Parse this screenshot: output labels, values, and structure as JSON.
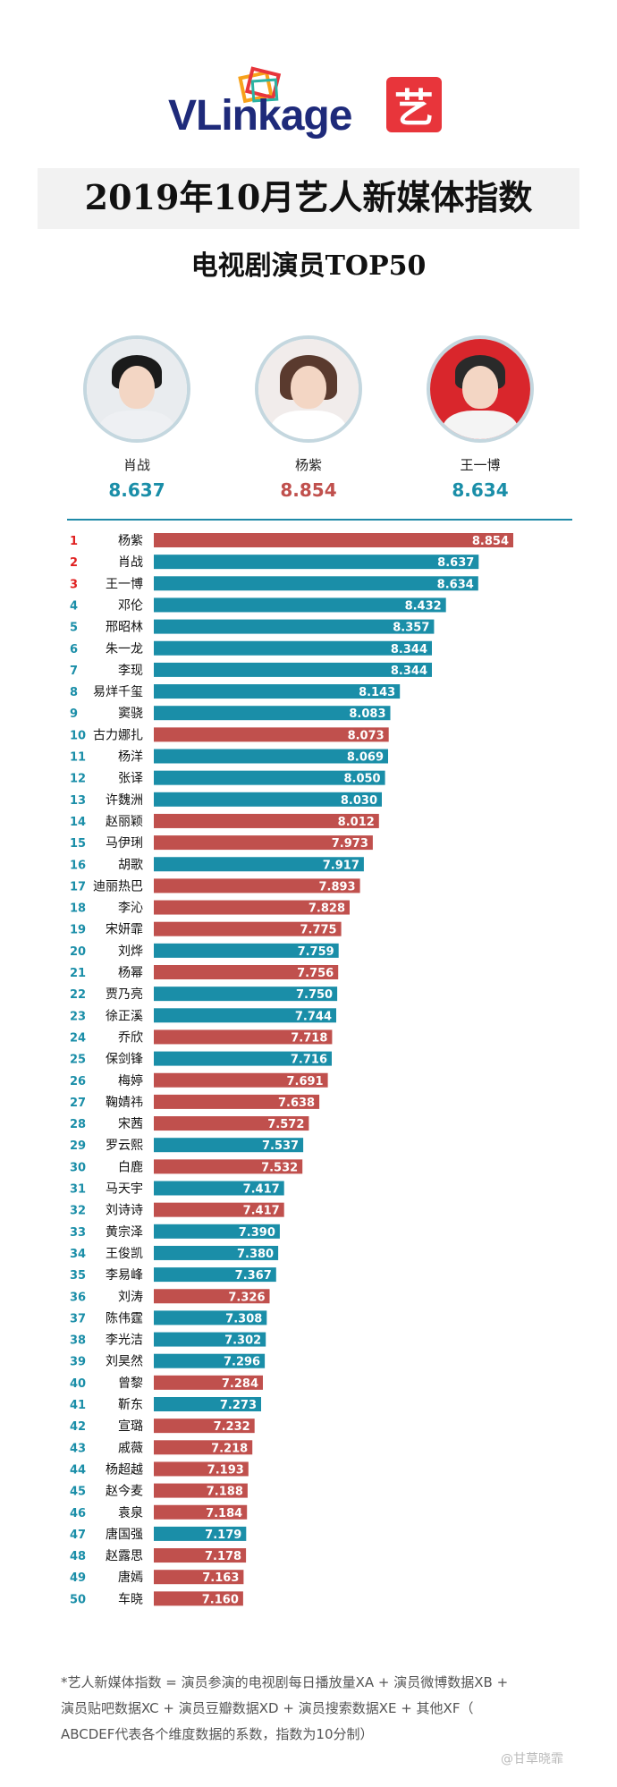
{
  "header": {
    "logo_text": "VLinkage",
    "badge_text": "艺",
    "title": "2019年10月艺人新媒体指数",
    "subtitle": "电视剧演员TOP50"
  },
  "podium": [
    {
      "name": "肖战",
      "score": "8.637",
      "color": "#1a8ea8"
    },
    {
      "name": "杨紫",
      "score": "8.854",
      "color": "#c0504d"
    },
    {
      "name": "王一博",
      "score": "8.634",
      "color": "#1a8ea8"
    }
  ],
  "colors": {
    "red": "#c0504d",
    "blue": "#1a8ea8",
    "rank_red": "#e02020",
    "divider": "#1f8aa8"
  },
  "chart_data": {
    "type": "bar",
    "orientation": "horizontal",
    "title": "电视剧演员TOP50",
    "xlim": [
      6.6,
      8.854
    ],
    "ranks": [
      "1",
      "2",
      "3",
      "4",
      "5",
      "6",
      "7",
      "8",
      "9",
      "10",
      "11",
      "12",
      "13",
      "14",
      "15",
      "16",
      "17",
      "18",
      "19",
      "20",
      "21",
      "22",
      "23",
      "24",
      "25",
      "26",
      "27",
      "28",
      "29",
      "30",
      "31",
      "32",
      "33",
      "34",
      "35",
      "36",
      "37",
      "38",
      "39",
      "40",
      "41",
      "42",
      "43",
      "44",
      "45",
      "46",
      "47",
      "48",
      "49",
      "50"
    ],
    "categories": [
      "杨紫",
      "肖战",
      "王一博",
      "邓伦",
      "邢昭林",
      "朱一龙",
      "李现",
      "易烊千玺",
      "窦骁",
      "古力娜扎",
      "杨洋",
      "张译",
      "许魏洲",
      "赵丽颖",
      "马伊琍",
      "胡歌",
      "迪丽热巴",
      "李沁",
      "宋妍霏",
      "刘烨",
      "杨幂",
      "贾乃亮",
      "徐正溪",
      "乔欣",
      "保剑锋",
      "梅婷",
      "鞠婧祎",
      "宋茜",
      "罗云熙",
      "白鹿",
      "马天宇",
      "刘诗诗",
      "黄宗泽",
      "王俊凯",
      "李易峰",
      "刘涛",
      "陈伟霆",
      "李光洁",
      "刘昊然",
      "曾黎",
      "靳东",
      "宣璐",
      "戚薇",
      "杨超越",
      "赵今麦",
      "袁泉",
      "唐国强",
      "赵露思",
      "唐嫣",
      "车晓"
    ],
    "values": [
      8.854,
      8.637,
      8.634,
      8.432,
      8.357,
      8.344,
      8.344,
      8.143,
      8.083,
      8.073,
      8.069,
      8.05,
      8.03,
      8.012,
      7.973,
      7.917,
      7.893,
      7.828,
      7.775,
      7.759,
      7.756,
      7.75,
      7.744,
      7.718,
      7.716,
      7.691,
      7.638,
      7.572,
      7.537,
      7.532,
      7.417,
      7.417,
      7.39,
      7.38,
      7.367,
      7.326,
      7.308,
      7.302,
      7.296,
      7.284,
      7.273,
      7.232,
      7.218,
      7.193,
      7.188,
      7.184,
      7.179,
      7.178,
      7.163,
      7.16
    ],
    "labels": [
      "8.854",
      "8.637",
      "8.634",
      "8.432",
      "8.357",
      "8.344",
      "8.344",
      "8.143",
      "8.083",
      "8.073",
      "8.069",
      "8.050",
      "8.030",
      "8.012",
      "7.973",
      "7.917",
      "7.893",
      "7.828",
      "7.775",
      "7.759",
      "7.756",
      "7.750",
      "7.744",
      "7.718",
      "7.716",
      "7.691",
      "7.638",
      "7.572",
      "7.537",
      "7.532",
      "7.417",
      "7.417",
      "7.390",
      "7.380",
      "7.367",
      "7.326",
      "7.308",
      "7.302",
      "7.296",
      "7.284",
      "7.273",
      "7.232",
      "7.218",
      "7.193",
      "7.188",
      "7.184",
      "7.179",
      "7.178",
      "7.163",
      "7.160"
    ],
    "gender": [
      "f",
      "m",
      "m",
      "m",
      "m",
      "m",
      "m",
      "m",
      "m",
      "f",
      "m",
      "m",
      "m",
      "f",
      "f",
      "m",
      "f",
      "f",
      "f",
      "m",
      "f",
      "m",
      "m",
      "f",
      "m",
      "f",
      "f",
      "f",
      "m",
      "f",
      "m",
      "f",
      "m",
      "m",
      "m",
      "f",
      "m",
      "m",
      "m",
      "f",
      "m",
      "f",
      "f",
      "f",
      "f",
      "f",
      "m",
      "f",
      "f",
      "f"
    ]
  },
  "footnote": {
    "line1": "*艺人新媒体指数 = 演员参演的电视剧每日播放量XA + 演员微博数据XB +",
    "line2": "演员贴吧数据XC + 演员豆瓣数据XD + 演员搜索数据XE + 其他XF（",
    "line3": "ABCDEF代表各个维度数据的系数，指数为10分制）"
  },
  "watermark": "@甘草晓霏"
}
